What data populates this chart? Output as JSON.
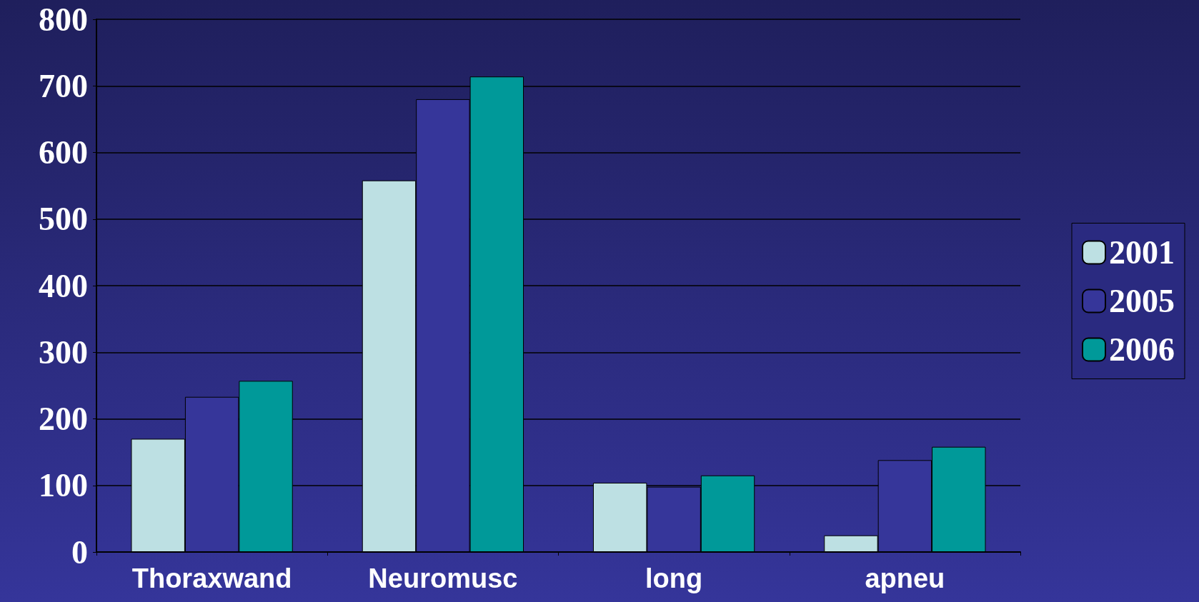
{
  "chart_data": {
    "type": "bar",
    "categories": [
      "Thoraxwand",
      "Neuromusc",
      "long",
      "apneu"
    ],
    "series": [
      {
        "name": "2001",
        "color": "#bde0e3",
        "values": [
          170,
          558,
          104,
          25
        ]
      },
      {
        "name": "2005",
        "color": "#36369a",
        "values": [
          233,
          680,
          98,
          138
        ]
      },
      {
        "name": "2006",
        "color": "#009999",
        "values": [
          257,
          714,
          115,
          158
        ]
      }
    ],
    "ylim": [
      0,
      800
    ],
    "yticks": [
      0,
      100,
      200,
      300,
      400,
      500,
      600,
      700,
      800
    ],
    "grid": "y",
    "legend": "right"
  }
}
